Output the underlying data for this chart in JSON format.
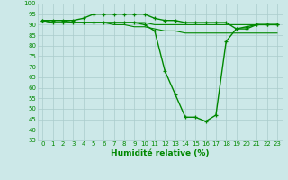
{
  "xlabel": "Humidité relative (%)",
  "bg_color": "#cce8e8",
  "grid_color": "#aacccc",
  "line_color": "#008800",
  "marker_color": "#008800",
  "xlim": [
    -0.5,
    23.5
  ],
  "ylim": [
    35,
    100
  ],
  "yticks": [
    35,
    40,
    45,
    50,
    55,
    60,
    65,
    70,
    75,
    80,
    85,
    90,
    95,
    100
  ],
  "xticks": [
    0,
    1,
    2,
    3,
    4,
    5,
    6,
    7,
    8,
    9,
    10,
    11,
    12,
    13,
    14,
    15,
    16,
    17,
    18,
    19,
    20,
    21,
    22,
    23
  ],
  "series": [
    {
      "x": [
        0,
        1,
        2,
        3,
        4,
        5,
        6,
        7,
        8,
        9,
        10,
        11,
        12,
        13,
        14,
        15,
        16,
        17,
        18,
        19,
        20,
        21,
        22,
        23
      ],
      "y": [
        92,
        91,
        91,
        91,
        91,
        91,
        91,
        91,
        91,
        91,
        90,
        87,
        68,
        57,
        46,
        46,
        44,
        47,
        82,
        88,
        89,
        90,
        90,
        90
      ],
      "marker": true,
      "linewidth": 1.0
    },
    {
      "x": [
        0,
        1,
        2,
        3,
        4,
        5,
        6,
        7,
        8,
        9,
        10,
        11,
        12,
        13,
        14,
        15,
        16,
        17,
        18,
        19,
        20,
        21,
        22,
        23
      ],
      "y": [
        92,
        92,
        92,
        92,
        93,
        95,
        95,
        95,
        95,
        95,
        95,
        93,
        92,
        92,
        91,
        91,
        91,
        91,
        91,
        88,
        88,
        90,
        90,
        90
      ],
      "marker": true,
      "linewidth": 1.0
    },
    {
      "x": [
        0,
        1,
        2,
        3,
        4,
        5,
        6,
        7,
        8,
        9,
        10,
        11,
        12,
        13,
        14,
        15,
        16,
        17,
        18,
        19,
        20,
        21,
        22,
        23
      ],
      "y": [
        92,
        92,
        92,
        91,
        91,
        91,
        91,
        91,
        91,
        91,
        91,
        90,
        90,
        90,
        90,
        90,
        90,
        90,
        90,
        90,
        90,
        90,
        90,
        90
      ],
      "marker": false,
      "linewidth": 0.8
    },
    {
      "x": [
        0,
        1,
        2,
        3,
        4,
        5,
        6,
        7,
        8,
        9,
        10,
        11,
        12,
        13,
        14,
        15,
        16,
        17,
        18,
        19,
        20,
        21,
        22,
        23
      ],
      "y": [
        92,
        91,
        91,
        91,
        91,
        91,
        91,
        90,
        90,
        89,
        89,
        88,
        87,
        87,
        86,
        86,
        86,
        86,
        86,
        86,
        86,
        86,
        86,
        86
      ],
      "marker": false,
      "linewidth": 0.8
    }
  ]
}
